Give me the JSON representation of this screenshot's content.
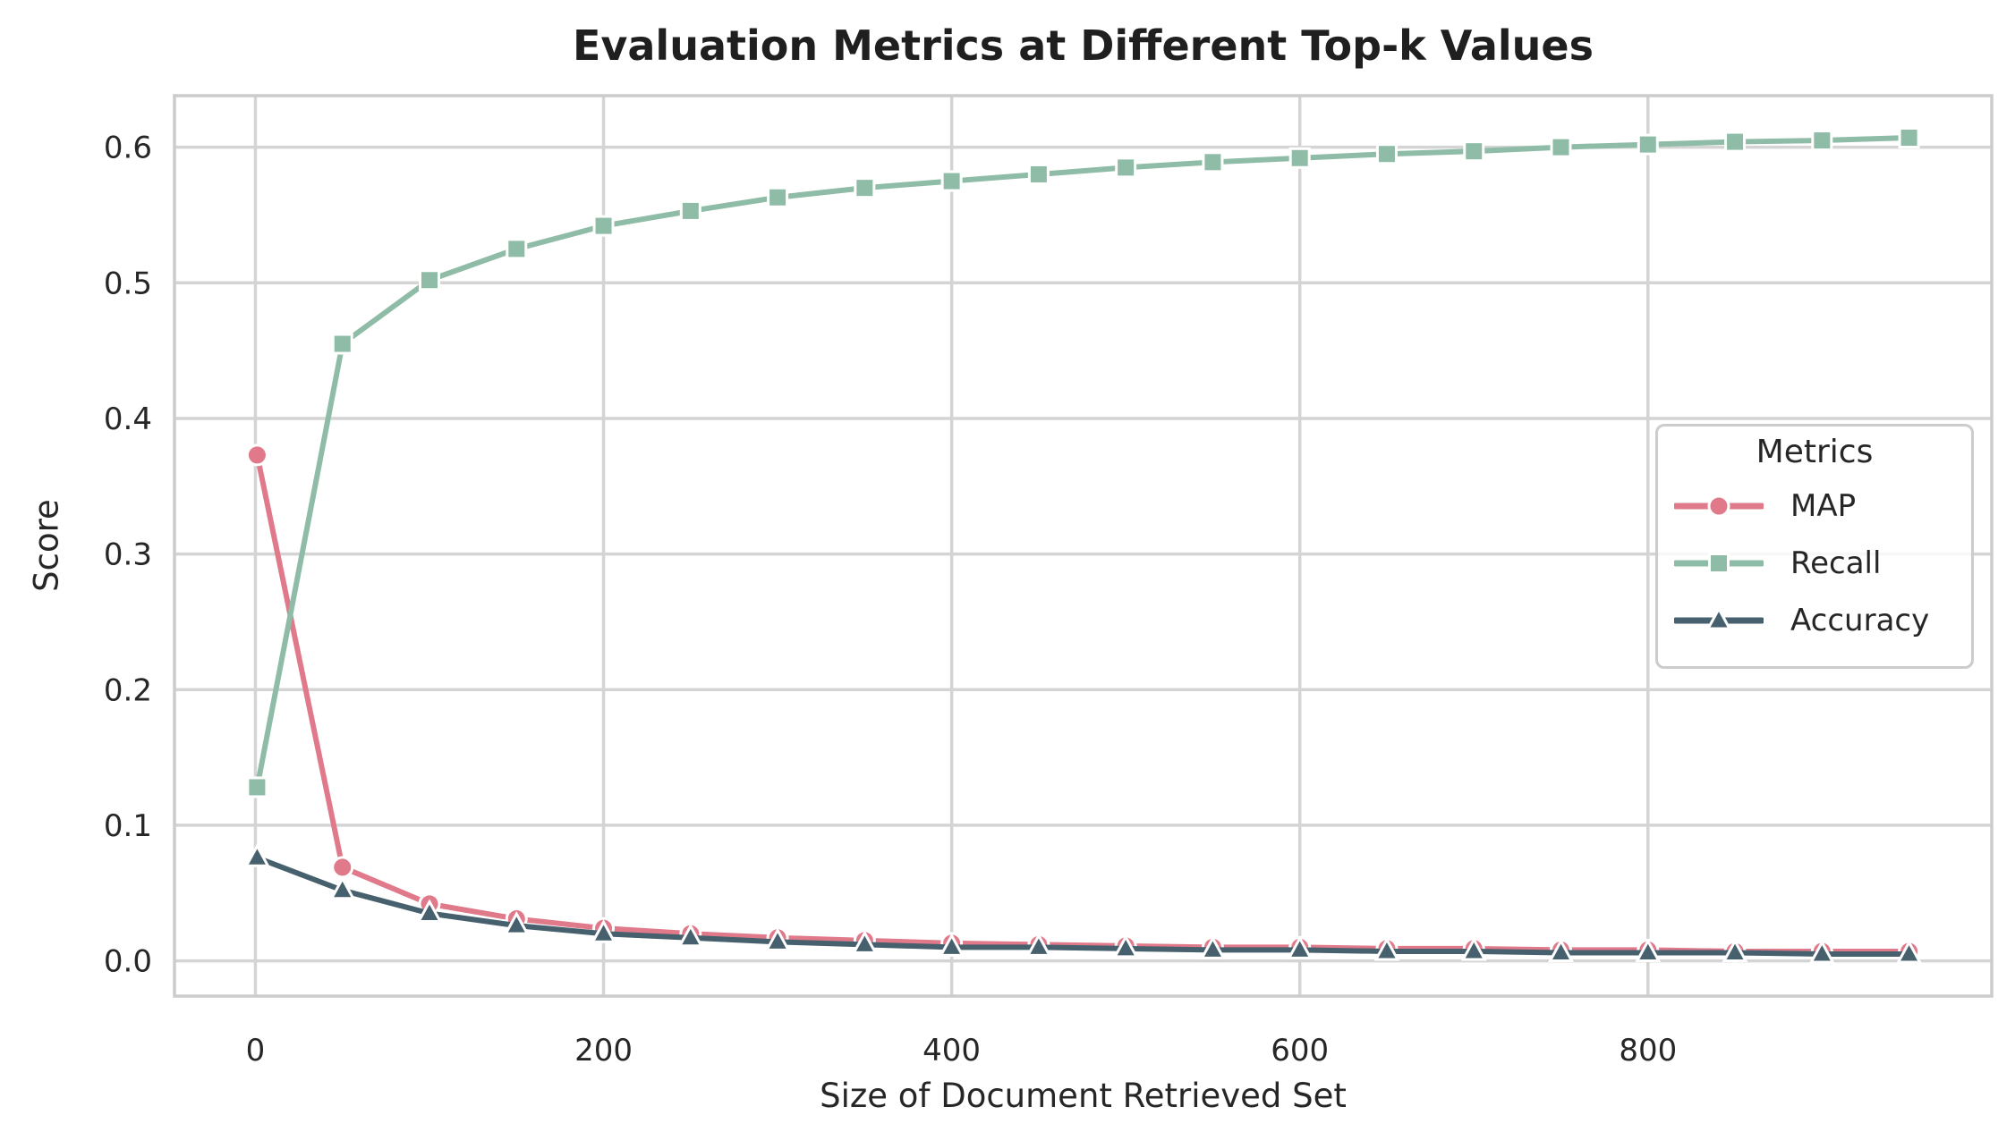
{
  "title": "Evaluation Metrics at Different Top-k Values",
  "axes": {
    "xlabel": "Size of Document Retrieved Set",
    "ylabel": "Score"
  },
  "legend": {
    "title": "Metrics",
    "entries": [
      "MAP",
      "Recall",
      "Accuracy"
    ]
  },
  "colors": {
    "map": "#e0798a",
    "recall": "#8fbca6",
    "accuracy": "#46606d",
    "grid": "#d4d4d4",
    "spine": "#cccccc",
    "text": "#262626",
    "background": "#ffffff",
    "marker_edge": "#ffffff"
  },
  "chart_data": {
    "type": "line",
    "title": "Evaluation Metrics at Different Top-k Values",
    "xlabel": "Size of Document Retrieved Set",
    "ylabel": "Score",
    "grid": true,
    "legend_position": "center-right",
    "x": [
      1,
      50,
      100,
      150,
      200,
      250,
      300,
      350,
      400,
      450,
      500,
      550,
      600,
      650,
      700,
      750,
      800,
      850,
      900,
      950
    ],
    "series": [
      {
        "name": "MAP",
        "color": "#e0798a",
        "marker": "circle",
        "values": [
          0.373,
          0.069,
          0.042,
          0.031,
          0.024,
          0.02,
          0.017,
          0.015,
          0.013,
          0.012,
          0.011,
          0.01,
          0.01,
          0.009,
          0.009,
          0.008,
          0.008,
          0.007,
          0.007,
          0.007
        ]
      },
      {
        "name": "Recall",
        "color": "#8fbca6",
        "marker": "square",
        "values": [
          0.128,
          0.455,
          0.502,
          0.525,
          0.542,
          0.553,
          0.563,
          0.57,
          0.575,
          0.58,
          0.585,
          0.589,
          0.592,
          0.595,
          0.597,
          0.6,
          0.602,
          0.604,
          0.605,
          0.607
        ]
      },
      {
        "name": "Accuracy",
        "color": "#46606d",
        "marker": "triangle",
        "values": [
          0.076,
          0.052,
          0.035,
          0.026,
          0.02,
          0.017,
          0.014,
          0.012,
          0.01,
          0.01,
          0.009,
          0.008,
          0.008,
          0.007,
          0.007,
          0.006,
          0.006,
          0.006,
          0.005,
          0.005
        ]
      }
    ],
    "xticks": [
      0,
      200,
      400,
      600,
      800
    ],
    "yticks": [
      0.0,
      0.1,
      0.2,
      0.3,
      0.4,
      0.5,
      0.6
    ],
    "ytick_labels": [
      "0.0",
      "0.1",
      "0.2",
      "0.3",
      "0.4",
      "0.5",
      "0.6"
    ],
    "xtick_labels": [
      "0",
      "200",
      "400",
      "600",
      "800"
    ],
    "xlim": [
      -46.5,
      997.5
    ],
    "ylim": [
      -0.026,
      0.638
    ]
  }
}
